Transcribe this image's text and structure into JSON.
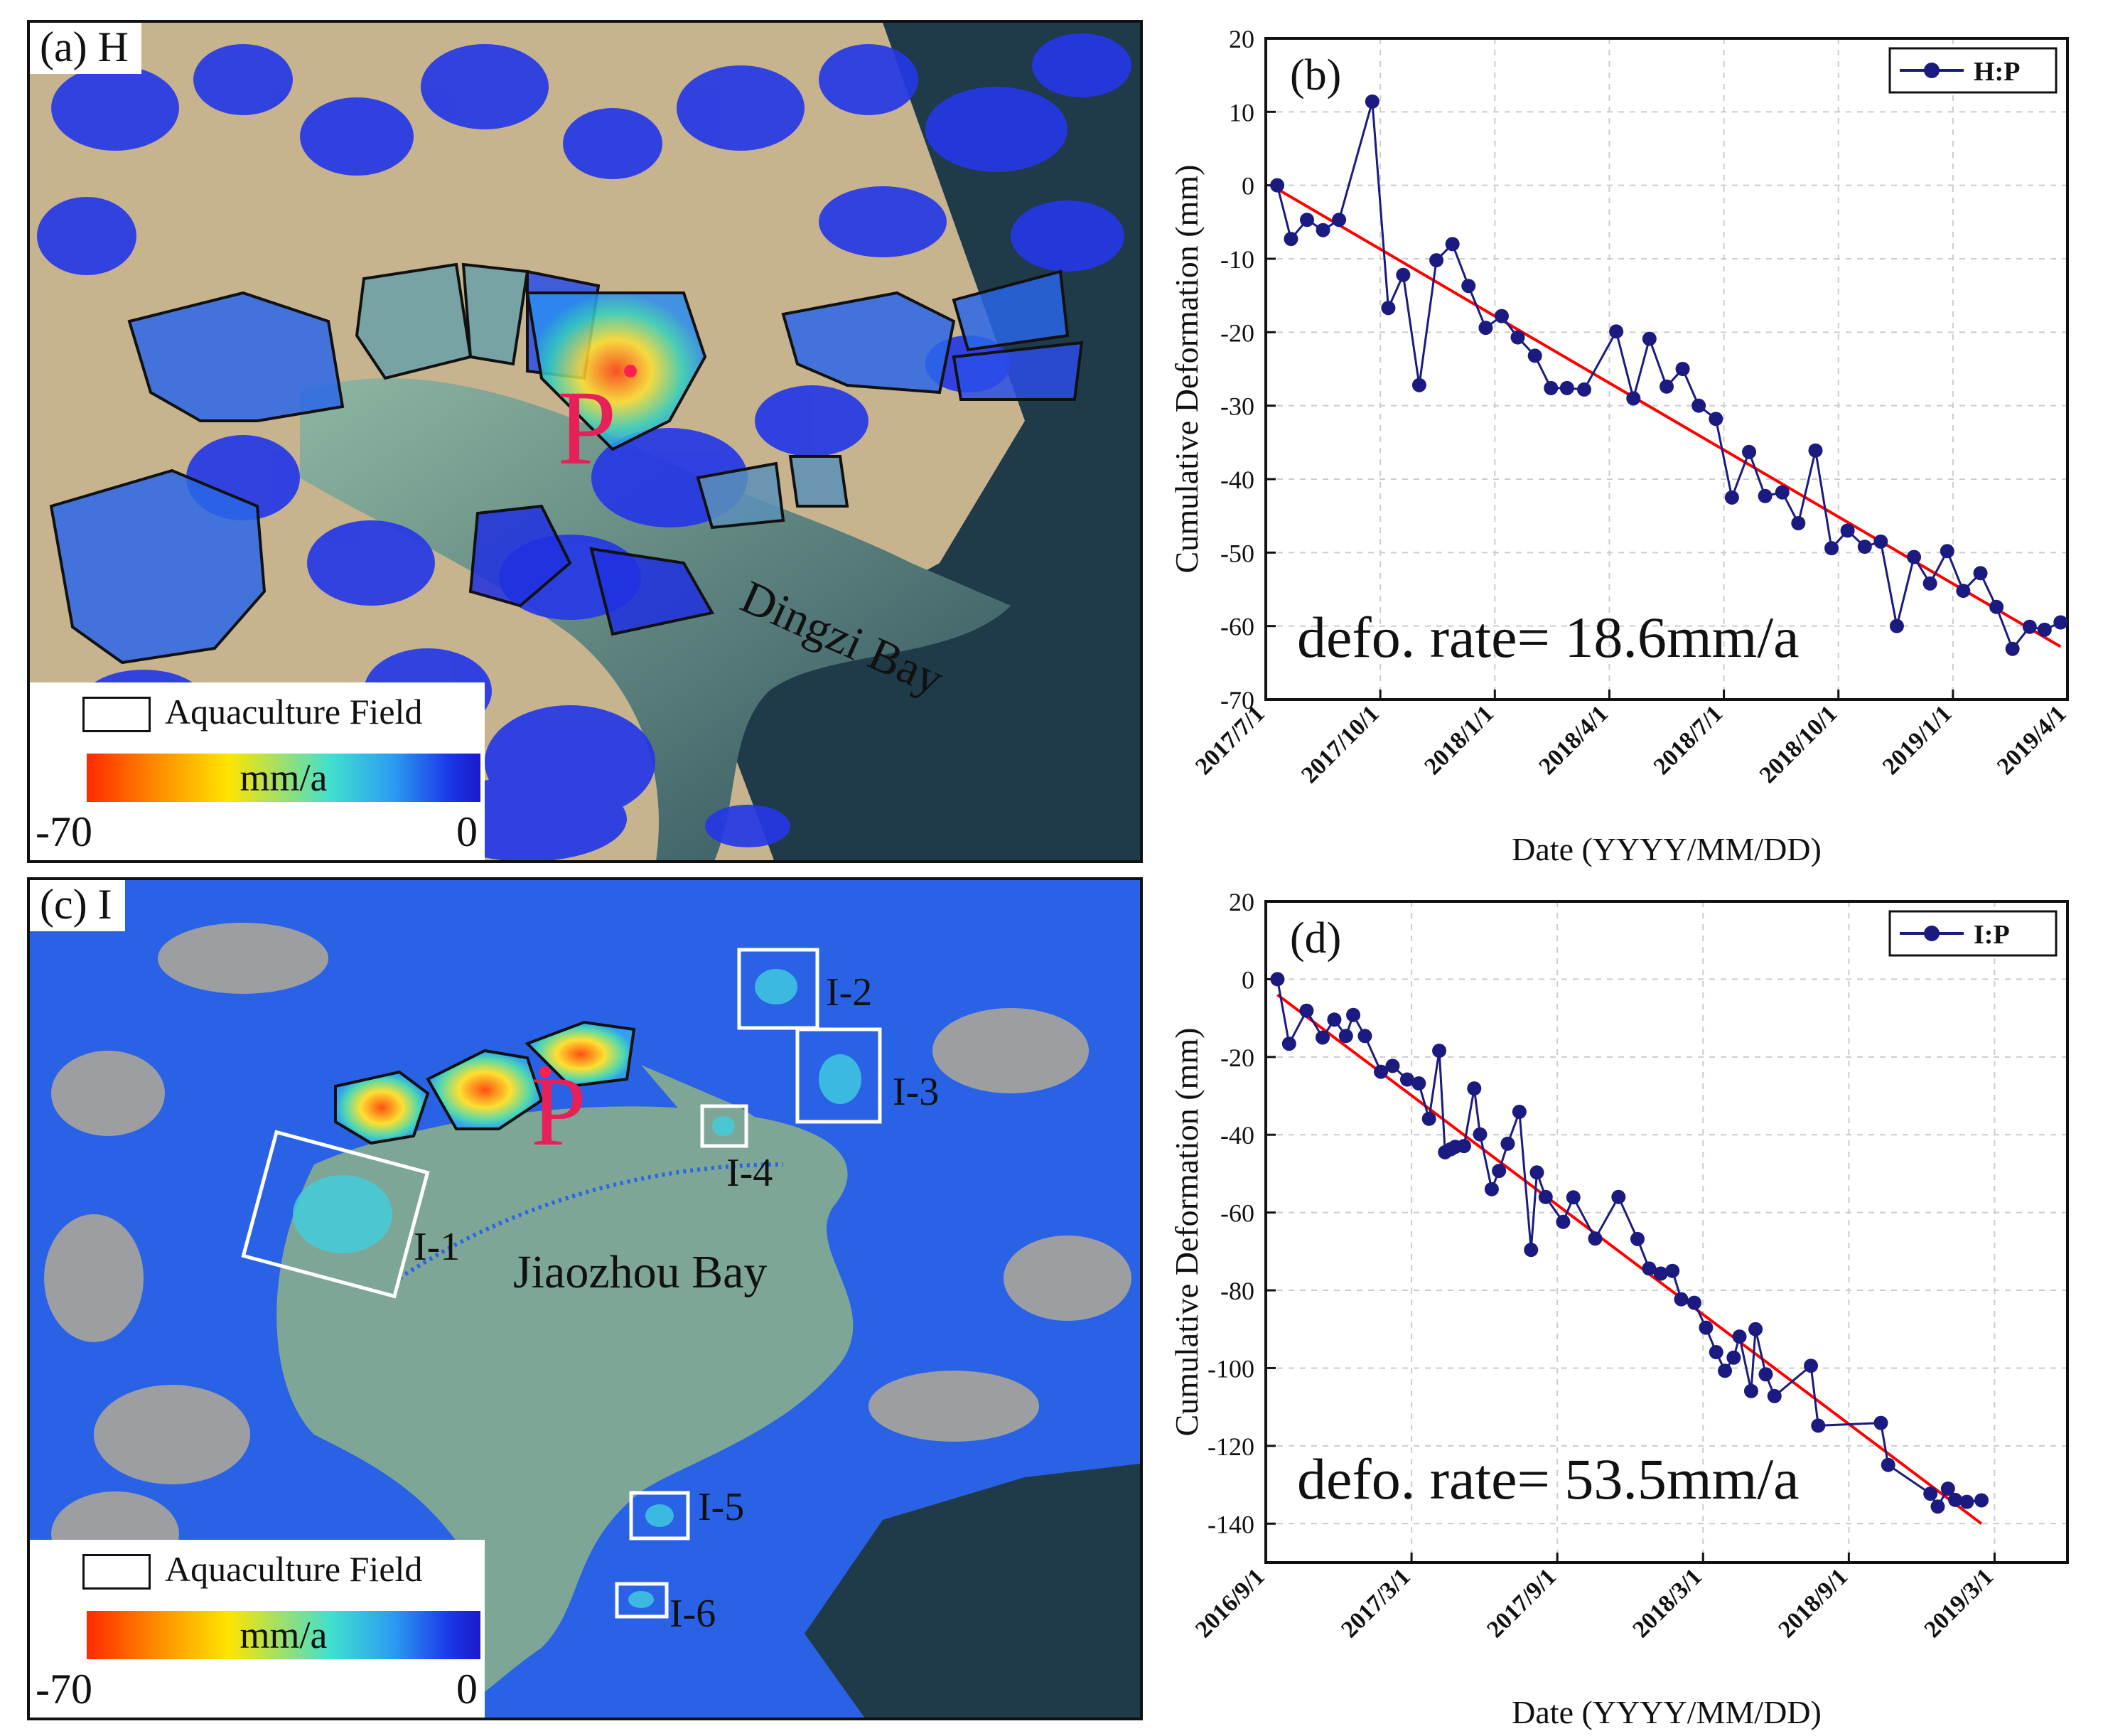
{
  "panels": {
    "a": {
      "tag": "(a) H",
      "point_label": "P",
      "bay_label": "Dingzi Bay",
      "legend": {
        "field_label": "Aquaculture Field",
        "unit": "mm/a",
        "min": "-70",
        "max": "0"
      }
    },
    "c": {
      "tag": "(c) I",
      "point_label": "P",
      "bay_label": "Jiaozhou Bay",
      "regions": [
        "I-1",
        "I-2",
        "I-3",
        "I-4",
        "I-5",
        "I-6"
      ],
      "legend": {
        "field_label": "Aquaculture Field",
        "unit": "mm/a",
        "min": "-70",
        "max": "0"
      }
    }
  },
  "colors": {
    "series": "#1a1a80",
    "fit": "#ff0000",
    "grid": "#cccccc",
    "point": "#ff2050"
  },
  "chart_data": [
    {
      "id": "b",
      "type": "line",
      "panel_tag": "(b)",
      "legend": "H:P",
      "annotation": "defo. rate= 18.6mm/a",
      "xlabel": "Date (YYYY/MM/DD)",
      "ylabel": "Cumulative Deformation (mm)",
      "x_ticks": [
        "2017/7/1",
        "2017/10/1",
        "2018/1/1",
        "2018/4/1",
        "2018/7/1",
        "2018/10/1",
        "2019/1/1",
        "2019/4/1"
      ],
      "x_range": [
        0,
        7
      ],
      "ylim": [
        -70,
        20
      ],
      "y_ticks": [
        20,
        10,
        0,
        -10,
        -20,
        -30,
        -40,
        -50,
        -60,
        -70
      ],
      "series": [
        {
          "name": "H:P",
          "x": [
            0.1,
            0.22,
            0.36,
            0.5,
            0.64,
            0.93,
            1.07,
            1.2,
            1.34,
            1.49,
            1.63,
            1.77,
            1.92,
            2.06,
            2.2,
            2.35,
            2.49,
            2.63,
            2.78,
            3.06,
            3.21,
            3.35,
            3.5,
            3.64,
            3.78,
            3.93,
            4.07,
            4.22,
            4.36,
            4.51,
            4.65,
            4.8,
            4.94,
            5.08,
            5.23,
            5.37,
            5.51,
            5.66,
            5.8,
            5.95,
            6.09,
            6.24,
            6.38,
            6.52,
            6.67,
            6.8,
            6.94
          ],
          "values": [
            0,
            -7.3,
            -4.7,
            -6.1,
            -4.7,
            11.4,
            -16.7,
            -12.2,
            -27.2,
            -10.2,
            -8.0,
            -13.7,
            -19.4,
            -17.8,
            -20.7,
            -23.2,
            -27.6,
            -27.6,
            -27.8,
            -19.9,
            -29.0,
            -20.9,
            -27.4,
            -25.0,
            -30.0,
            -31.8,
            -42.5,
            -36.3,
            -42.3,
            -41.8,
            -46.0,
            -36.1,
            -49.4,
            -47.0,
            -49.2,
            -48.5,
            -60.0,
            -50.6,
            -54.2,
            -49.8,
            -55.2,
            -52.8,
            -57.4,
            -63.1,
            -60.1,
            -60.5,
            -59.5
          ]
        },
        {
          "name": "fit",
          "x": [
            0.1,
            6.94
          ],
          "values": [
            -0.5,
            -62.8
          ]
        }
      ]
    },
    {
      "id": "d",
      "type": "line",
      "panel_tag": "(d)",
      "legend": "I:P",
      "annotation": "defo. rate= 53.5mm/a",
      "xlabel": "Date (YYYY/MM/DD)",
      "ylabel": "Cumulative Deformation (mm)",
      "x_ticks": [
        "2016/9/1",
        "2017/3/1",
        "2017/9/1",
        "2018/3/1",
        "2018/9/1",
        "2019/3/1"
      ],
      "x_range": [
        0,
        5.5
      ],
      "ylim": [
        -150,
        20
      ],
      "y_ticks": [
        20,
        0,
        -20,
        -40,
        -60,
        -80,
        -100,
        -120,
        -140
      ],
      "series": [
        {
          "name": "I:P",
          "x": [
            0.08,
            0.16,
            0.28,
            0.39,
            0.47,
            0.55,
            0.6,
            0.68,
            0.79,
            0.87,
            0.97,
            1.05,
            1.12,
            1.19,
            1.23,
            1.27,
            1.3,
            1.36,
            1.43,
            1.47,
            1.55,
            1.6,
            1.66,
            1.74,
            1.82,
            1.86,
            1.92,
            2.04,
            2.11,
            2.26,
            2.42,
            2.55,
            2.63,
            2.71,
            2.79,
            2.85,
            2.94,
            3.02,
            3.09,
            3.15,
            3.21,
            3.25,
            3.33,
            3.36,
            3.43,
            3.49,
            3.74,
            3.79,
            4.22,
            4.27,
            4.56,
            4.61,
            4.68,
            4.73,
            4.81,
            4.91
          ],
          "values": [
            0,
            -16.6,
            -8.1,
            -15.0,
            -10.4,
            -14.6,
            -9.2,
            -14.6,
            -23.8,
            -22.3,
            -25.8,
            -26.8,
            -35.9,
            -18.4,
            -44.5,
            -43.7,
            -43.1,
            -42.9,
            -28.1,
            -39.9,
            -54.0,
            -49.3,
            -42.3,
            -34.1,
            -69.6,
            -49.7,
            -56.0,
            -62.4,
            -56.1,
            -66.7,
            -56.0,
            -66.8,
            -74.4,
            -75.7,
            -75.0,
            -82.3,
            -83.2,
            -89.6,
            -95.9,
            -100.7,
            -97.3,
            -91.9,
            -105.9,
            -90.0,
            -101.6,
            -107.2,
            -99.4,
            -114.8,
            -114.1,
            -124.9,
            -132.3,
            -135.6,
            -131.0,
            -133.9,
            -134.4,
            -134.0
          ]
        },
        {
          "name": "fit",
          "x": [
            0.08,
            4.91
          ],
          "values": [
            -4,
            -140
          ]
        }
      ]
    }
  ]
}
